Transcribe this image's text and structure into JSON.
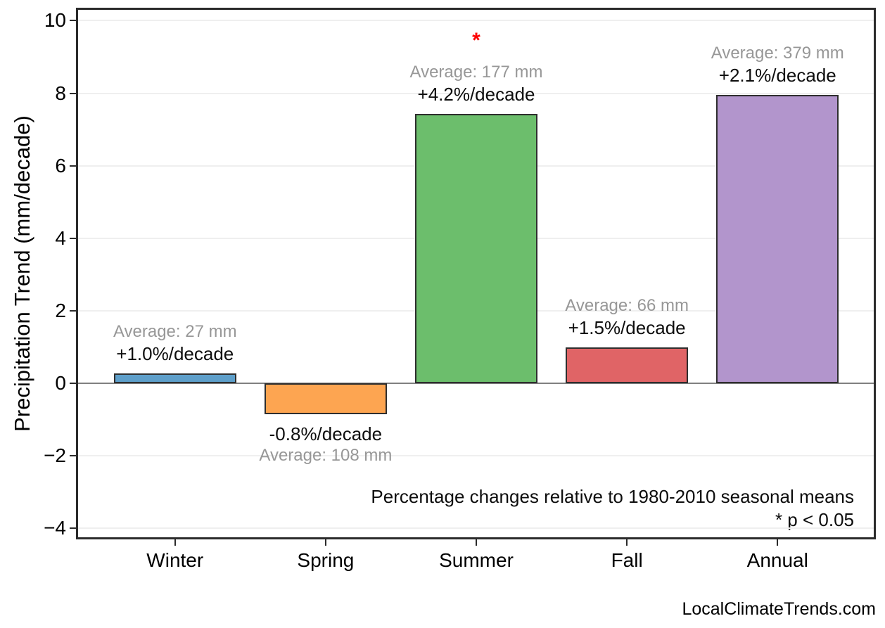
{
  "watermark": "LocalClimateTrends.com",
  "colors": {
    "bar_edge": "#2e2e2e",
    "axis": "#2b2b2b",
    "gridline": "#efefef",
    "zero_line": "#808080",
    "average_text": "#979797",
    "percent_text": "#0d0d0d",
    "significance": "#fd0000"
  },
  "chart_data": {
    "type": "bar",
    "title": "",
    "xlabel": "",
    "ylabel": "Precipitation Trend (mm/decade)",
    "categories": [
      "Winter",
      "Spring",
      "Summer",
      "Fall",
      "Annual"
    ],
    "values": [
      0.27,
      -0.86,
      7.43,
      0.99,
      7.96
    ],
    "bar_colors": [
      "#5E9FCA",
      "#FDA551",
      "#6CBE6C",
      "#E06466",
      "#B295CC"
    ],
    "averages_mm": [
      27,
      108,
      177,
      66,
      379
    ],
    "average_labels": [
      "Average: 27 mm",
      "Average: 108 mm",
      "Average: 177 mm",
      "Average: 66 mm",
      "Average: 379 mm"
    ],
    "percent_labels": [
      "+1.0%/decade",
      "-0.8%/decade",
      "+4.2%/decade",
      "+1.5%/decade",
      "+2.1%/decade"
    ],
    "significant": [
      false,
      false,
      true,
      false,
      false
    ],
    "significance_marker": "*",
    "yticks": [
      10,
      8,
      6,
      4,
      2,
      0,
      -2,
      -4
    ],
    "ytick_labels": [
      "10",
      "8",
      "6",
      "4",
      "2",
      "0",
      "−2",
      "−4"
    ],
    "ylim": [
      -4.25,
      10.3
    ],
    "grid": "horizontal-faint",
    "legend": "none",
    "annotations": {
      "footer_line1": "Percentage changes relative to 1980-2010 seasonal means",
      "footer_line2": "* p < 0.05"
    }
  }
}
